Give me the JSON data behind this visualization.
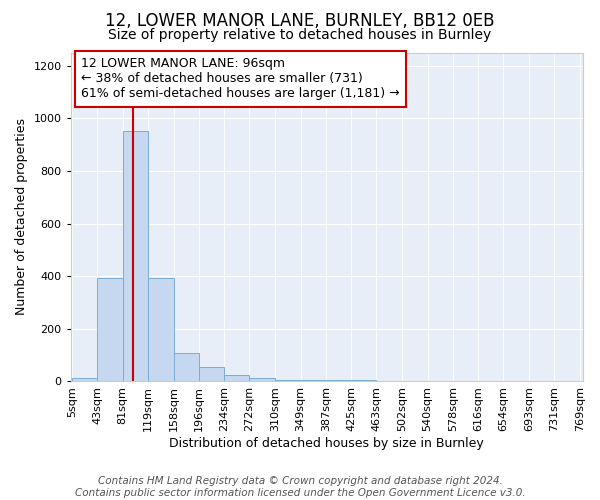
{
  "title": "12, LOWER MANOR LANE, BURNLEY, BB12 0EB",
  "subtitle": "Size of property relative to detached houses in Burnley",
  "xlabel": "Distribution of detached houses by size in Burnley",
  "ylabel": "Number of detached properties",
  "bin_edges": [
    5,
    43,
    81,
    119,
    158,
    196,
    234,
    272,
    310,
    349,
    387,
    425,
    463,
    502,
    540,
    578,
    616,
    654,
    693,
    731,
    769
  ],
  "bar_heights": [
    15,
    392,
    950,
    392,
    108,
    55,
    25,
    12,
    5,
    5,
    5,
    5,
    3,
    3,
    3,
    3,
    3,
    3,
    3,
    3
  ],
  "bar_color": "#c5d8f0",
  "bar_edgecolor": "#7aadd4",
  "vline_x": 96,
  "vline_color": "#cc0000",
  "annotation_text": "12 LOWER MANOR LANE: 96sqm\n← 38% of detached houses are smaller (731)\n61% of semi-detached houses are larger (1,181) →",
  "ylim": [
    0,
    1250
  ],
  "yticks": [
    0,
    200,
    400,
    600,
    800,
    1000,
    1200
  ],
  "fig_background": "#ffffff",
  "ax_background": "#e8eef8",
  "footer_text": "Contains HM Land Registry data © Crown copyright and database right 2024.\nContains public sector information licensed under the Open Government Licence v3.0.",
  "title_fontsize": 12,
  "subtitle_fontsize": 10,
  "xlabel_fontsize": 9,
  "ylabel_fontsize": 9,
  "tick_fontsize": 8,
  "annotation_fontsize": 9,
  "footer_fontsize": 7.5
}
